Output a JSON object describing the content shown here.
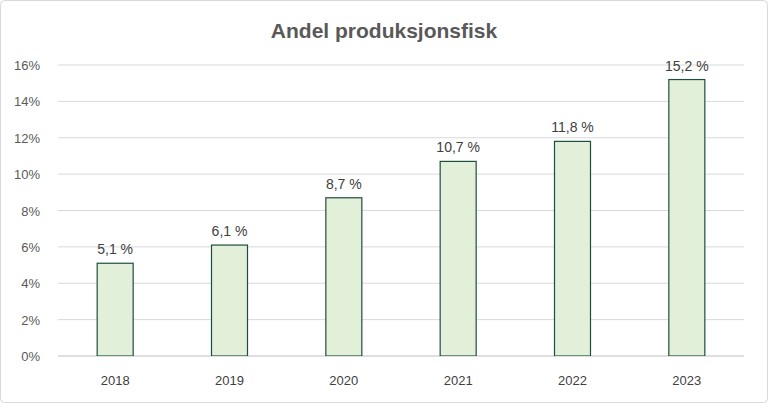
{
  "chart_data": {
    "type": "bar",
    "title": "Andel produksjonsfisk",
    "categories": [
      "2018",
      "2019",
      "2020",
      "2021",
      "2022",
      "2023"
    ],
    "values": [
      5.1,
      6.1,
      8.7,
      10.7,
      11.8,
      15.2
    ],
    "value_labels": [
      "5,1 %",
      "6,1 %",
      "8,7 %",
      "10,7 %",
      "11,8 %",
      "15,2 %"
    ],
    "color": "#e2f0d9",
    "ylim": [
      0,
      16
    ],
    "yticks": [
      {
        "value": 0,
        "label": "0%"
      },
      {
        "value": 2,
        "label": "2%"
      },
      {
        "value": 4,
        "label": "4%"
      },
      {
        "value": 6,
        "label": "6%"
      },
      {
        "value": 8,
        "label": "8%"
      },
      {
        "value": 10,
        "label": "10%"
      },
      {
        "value": 12,
        "label": "12%"
      },
      {
        "value": 14,
        "label": "14%"
      },
      {
        "value": 16,
        "label": "16%"
      }
    ],
    "grid": true,
    "data_labels": true
  }
}
